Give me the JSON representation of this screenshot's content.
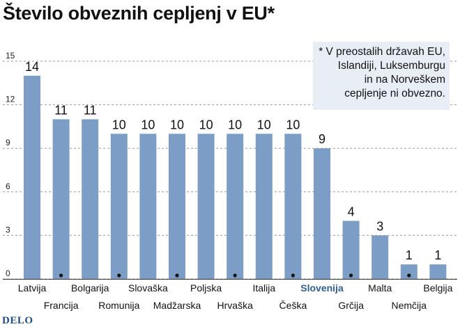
{
  "title": "Število obveznih cepljenj v EU*",
  "note": {
    "lines": [
      "* V preostalih državah EU,",
      "Islandiji, Luksemburgu",
      "in na Norveškem",
      "cepljenje ni obvezno."
    ]
  },
  "brand": "DELO",
  "colors": {
    "bar": "#7b9dc6",
    "highlight_label": "#2f5f94",
    "grid": "#9a9a9a",
    "note_bg": "#e7eef6"
  },
  "chart_data": {
    "type": "bar",
    "title": "Število obveznih cepljenj v EU*",
    "categories": [
      "Latvija",
      "Francija",
      "Bolgarija",
      "Romunija",
      "Slovaška",
      "Madžarska",
      "Poljska",
      "Hrvaška",
      "Italija",
      "Češka",
      "Slovenija",
      "Grčija",
      "Malta",
      "Nemčija",
      "Belgija"
    ],
    "values": [
      14,
      11,
      11,
      10,
      10,
      10,
      10,
      10,
      10,
      10,
      9,
      4,
      3,
      1,
      1
    ],
    "value_labels": [
      "14",
      "11",
      "11",
      "10",
      "10",
      "10",
      "10",
      "10",
      "10",
      "10",
      "9",
      "4",
      "3",
      "1",
      "1"
    ],
    "yticks": [
      "0",
      "3",
      "6",
      "9",
      "12",
      "15"
    ],
    "ylim": [
      0,
      15
    ],
    "grid": true,
    "highlight": "Slovenija"
  }
}
